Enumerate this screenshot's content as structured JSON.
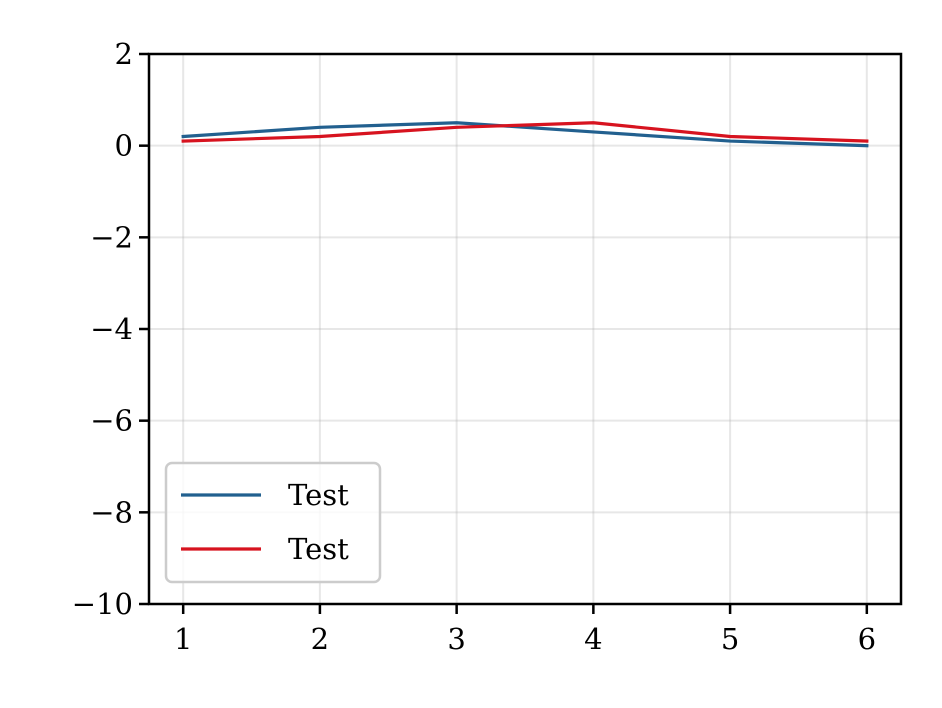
{
  "chart_data": {
    "type": "line",
    "title": "",
    "xlabel": "",
    "ylabel": "",
    "x": [
      1,
      2,
      3,
      4,
      5,
      6
    ],
    "xlim": [
      0.75,
      6.25
    ],
    "ylim": [
      -10,
      2
    ],
    "xticks": [
      1,
      2,
      3,
      4,
      5,
      6
    ],
    "yticks": [
      -10,
      -8,
      -6,
      -4,
      -2,
      0,
      2
    ],
    "xtick_labels": [
      "1",
      "2",
      "3",
      "4",
      "5",
      "6"
    ],
    "ytick_labels": [
      "−10",
      "−8",
      "−6",
      "−4",
      "−2",
      "0",
      "2"
    ],
    "grid": true,
    "legend_position": "lower-left",
    "series": [
      {
        "name": "Test",
        "color": "#22608f",
        "values": [
          0.2,
          0.4,
          0.5,
          0.3,
          0.1,
          0.0
        ]
      },
      {
        "name": "Test",
        "color": "#d7131f",
        "values": [
          0.1,
          0.2,
          0.4,
          0.5,
          0.2,
          0.1
        ]
      }
    ]
  }
}
